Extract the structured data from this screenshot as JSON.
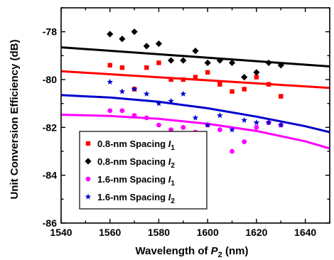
{
  "chart_data": {
    "type": "scatter",
    "title": "",
    "xlabel": {
      "prefix": "Wavelength of ",
      "var": "P",
      "sub": "2",
      "suffix": " (nm)"
    },
    "ylabel": "Unit Conversion Efficiency (dB)",
    "xlim": [
      1540,
      1650
    ],
    "ylim": [
      -86,
      -77
    ],
    "xticks": [
      1540,
      1560,
      1580,
      1600,
      1620,
      1640
    ],
    "yticks": [
      -78,
      -80,
      -82,
      -84,
      -86
    ],
    "grid": false,
    "legend_position": "bottom-left",
    "series": [
      {
        "name": "0.8-nm Spacing I1",
        "legend": {
          "text": "0.8-nm Spacing ",
          "var": "I",
          "sub": "1"
        },
        "marker": "square",
        "color": "#ff0000",
        "x": [
          1560,
          1565,
          1570,
          1575,
          1580,
          1585,
          1590,
          1595,
          1600,
          1605,
          1610,
          1615,
          1620,
          1625,
          1630
        ],
        "y": [
          -79.4,
          -79.5,
          -80.4,
          -79.5,
          -79.3,
          -80.0,
          -80.0,
          -79.9,
          -79.7,
          -80.2,
          -80.5,
          -80.4,
          -79.9,
          -80.2,
          -80.7
        ],
        "fit": {
          "x": [
            1540,
            1650
          ],
          "y": [
            -79.65,
            -80.35
          ]
        }
      },
      {
        "name": "0.8-nm Spacing I2",
        "legend": {
          "text": "0.8-nm Spacing ",
          "var": "I",
          "sub": "2"
        },
        "marker": "diamond",
        "color": "#000000",
        "x": [
          1560,
          1565,
          1570,
          1575,
          1580,
          1585,
          1590,
          1595,
          1600,
          1605,
          1610,
          1615,
          1620,
          1625,
          1630
        ],
        "y": [
          -78.1,
          -78.3,
          -78.0,
          -78.6,
          -78.5,
          -79.2,
          -79.2,
          -78.8,
          -79.3,
          -79.2,
          -79.3,
          -79.9,
          -79.7,
          -79.3,
          -79.4
        ],
        "fit": {
          "x": [
            1540,
            1650
          ],
          "y": [
            -78.65,
            -79.45
          ]
        }
      },
      {
        "name": "1.6-nm Spacing I1",
        "legend": {
          "text": "1.6-nm Spacing ",
          "var": "I",
          "sub": "1"
        },
        "marker": "circle",
        "color": "#ff00ff",
        "x": [
          1560,
          1565,
          1570,
          1575,
          1580,
          1585,
          1590,
          1595,
          1600,
          1605,
          1610,
          1615,
          1620,
          1625,
          1630
        ],
        "y": [
          -81.3,
          -81.3,
          -81.5,
          -81.6,
          -81.9,
          -82.1,
          -82.0,
          -82.2,
          -81.9,
          -82.1,
          -83.0,
          -82.6,
          -82.0,
          -81.8,
          -81.9
        ],
        "fit": {
          "x": [
            1540,
            1560,
            1580,
            1600,
            1620,
            1640,
            1650
          ],
          "y": [
            -81.47,
            -81.52,
            -81.64,
            -81.85,
            -82.15,
            -82.58,
            -82.88
          ]
        }
      },
      {
        "name": "1.6-nm Spacing I2",
        "legend": {
          "text": "1.6-nm Spacing ",
          "var": "I",
          "sub": "2"
        },
        "marker": "star",
        "color": "#0000cc",
        "x": [
          1560,
          1565,
          1570,
          1575,
          1580,
          1585,
          1590,
          1595,
          1600,
          1605,
          1610,
          1615,
          1620,
          1625,
          1630
        ],
        "y": [
          -80.1,
          -80.5,
          -80.4,
          -80.6,
          -81.0,
          -80.9,
          -80.6,
          -81.6,
          -81.9,
          -81.5,
          -82.1,
          -81.7,
          -81.8,
          -81.8,
          -81.9
        ],
        "fit": {
          "x": [
            1540,
            1560,
            1580,
            1600,
            1620,
            1640,
            1650
          ],
          "y": [
            -80.65,
            -80.75,
            -80.93,
            -81.2,
            -81.55,
            -81.95,
            -82.2
          ]
        }
      }
    ]
  }
}
